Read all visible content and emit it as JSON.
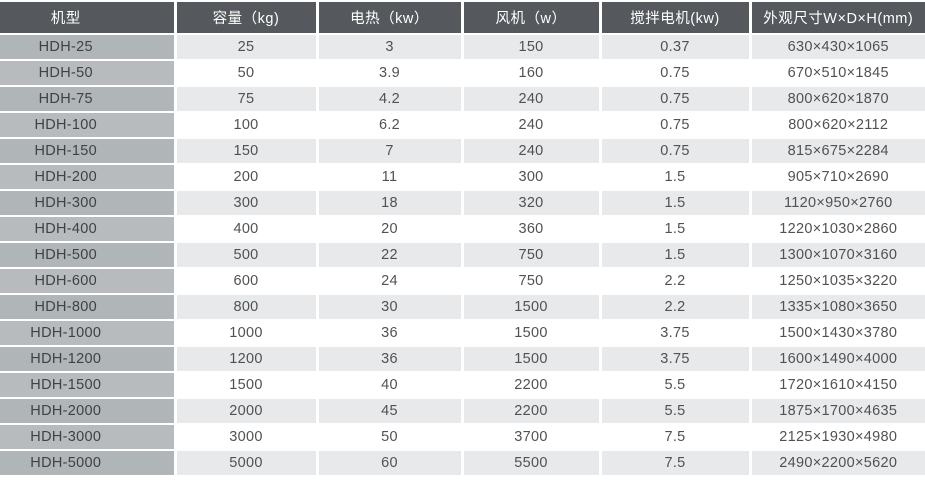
{
  "colors": {
    "header_bg": "#55585c",
    "header_text": "#ffffff",
    "model_bg_odd": "#b0b5b8",
    "model_bg_even": "#b7bbbe",
    "row_bg_odd": "#e7e9ea",
    "row_bg_even": "#ffffff",
    "body_text": "#4f5255",
    "model_text": "#3e4246",
    "divider": "#ffffff"
  },
  "table": {
    "columns": [
      {
        "key": "model",
        "label": "机型"
      },
      {
        "key": "capacity",
        "label": "容量（kg)"
      },
      {
        "key": "heating",
        "label": "电热（kw）"
      },
      {
        "key": "fan",
        "label": "风机（w）"
      },
      {
        "key": "mixer",
        "label": "搅拌电机(kw)"
      },
      {
        "key": "dims",
        "label": "外观尺寸W×D×H(mm)"
      }
    ],
    "rows": [
      [
        "HDH-25",
        "25",
        "3",
        "150",
        "0.37",
        "630×430×1065"
      ],
      [
        "HDH-50",
        "50",
        "3.9",
        "160",
        "0.75",
        "670×510×1845"
      ],
      [
        "HDH-75",
        "75",
        "4.2",
        "240",
        "0.75",
        "800×620×1870"
      ],
      [
        "HDH-100",
        "100",
        "6.2",
        "240",
        "0.75",
        "800×620×2112"
      ],
      [
        "HDH-150",
        "150",
        "7",
        "240",
        "0.75",
        "815×675×2284"
      ],
      [
        "HDH-200",
        "200",
        "11",
        "300",
        "1.5",
        "905×710×2690"
      ],
      [
        "HDH-300",
        "300",
        "18",
        "320",
        "1.5",
        "1120×950×2760"
      ],
      [
        "HDH-400",
        "400",
        "20",
        "360",
        "1.5",
        "1220×1030×2860"
      ],
      [
        "HDH-500",
        "500",
        "22",
        "750",
        "1.5",
        "1300×1070×3160"
      ],
      [
        "HDH-600",
        "600",
        "24",
        "750",
        "2.2",
        "1250×1035×3220"
      ],
      [
        "HDH-800",
        "800",
        "30",
        "1500",
        "2.2",
        "1335×1080×3650"
      ],
      [
        "HDH-1000",
        "1000",
        "36",
        "1500",
        "3.75",
        "1500×1430×3780"
      ],
      [
        "HDH-1200",
        "1200",
        "36",
        "1500",
        "3.75",
        "1600×1490×4000"
      ],
      [
        "HDH-1500",
        "1500",
        "40",
        "2200",
        "5.5",
        "1720×1610×4150"
      ],
      [
        "HDH-2000",
        "2000",
        "45",
        "2200",
        "5.5",
        "1875×1700×4635"
      ],
      [
        "HDH-3000",
        "3000",
        "50",
        "3700",
        "7.5",
        "2125×1930×4980"
      ],
      [
        "HDH-5000",
        "5000",
        "60",
        "5500",
        "7.5",
        "2490×2200×5620"
      ]
    ]
  }
}
